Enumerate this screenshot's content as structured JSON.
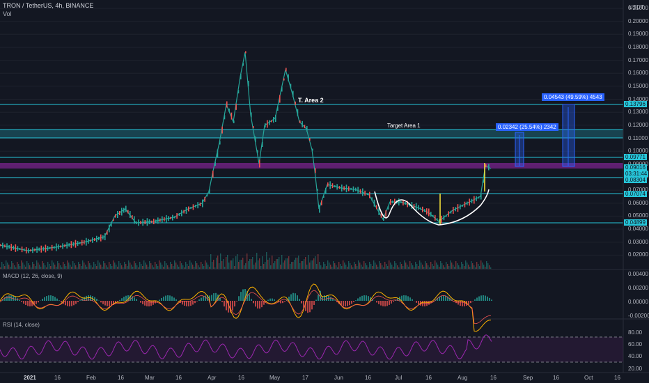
{
  "header": {
    "symbol_line": "TRON / TetherUS, 4h, BINANCE",
    "volume_label": "Vol",
    "currency": "USDT"
  },
  "price_axis": {
    "ticks": [
      "0.21000",
      "0.20000",
      "0.19000",
      "0.18000",
      "0.17000",
      "0.16000",
      "0.15000",
      "0.14000",
      "0.13000",
      "0.12000",
      "0.11000",
      "0.10000",
      "0.09000",
      "0.08000",
      "0.07000",
      "0.06000",
      "0.05000",
      "0.04000",
      "0.03000",
      "0.02000"
    ]
  },
  "price_tags": [
    {
      "value": "0.13796",
      "color": "#26c6da"
    },
    {
      "value": "0.09771",
      "color": "#26c6da"
    },
    {
      "value": "0.09016",
      "color": "#26c6da"
    },
    {
      "value": "03:31:44",
      "color": "#26c6da"
    },
    {
      "value": "0.08304",
      "color": "#26c6da"
    },
    {
      "value": "0.07074",
      "color": "#26c6da"
    },
    {
      "value": "0.04899",
      "color": "#26c6da"
    }
  ],
  "annotations": {
    "target_area_2": "T. Area 2",
    "target_area_1": "Target Area 1",
    "measure_1": "0.02342 (25.54%) 2342",
    "measure_2": "0.04543 (49.59%) 4543"
  },
  "macd": {
    "label": "MACD (12, 26, close, 9)",
    "ticks": [
      "0.00400",
      "0.00200",
      "0.00000",
      "-0.00200"
    ]
  },
  "rsi": {
    "label": "RSI (14, close)",
    "ticks": [
      "80.00",
      "60.00",
      "40.00",
      "20.00"
    ]
  },
  "time_axis": {
    "labels": [
      "2021",
      "16",
      "Feb",
      "16",
      "Mar",
      "16",
      "Apr",
      "16",
      "May",
      "17",
      "Jun",
      "16",
      "Jul",
      "16",
      "Aug",
      "16",
      "Sep",
      "16",
      "Oct",
      "16"
    ]
  },
  "colors": {
    "background": "#131722",
    "up": "#26a69a",
    "down": "#ef5350",
    "level_line": "#26c6da",
    "resistance_zone": "#9c27b0",
    "measure_box": "#2962ff",
    "macd_line": "#ffb300",
    "rsi_line": "#9c27b0"
  }
}
